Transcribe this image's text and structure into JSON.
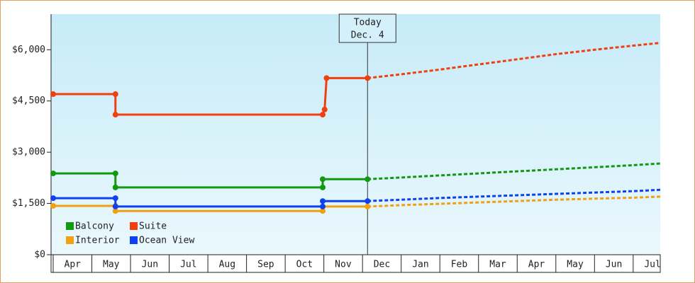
{
  "chart_data": {
    "type": "line",
    "ylim": [
      0,
      7000
    ],
    "yticks": [
      {
        "value": 0,
        "label": "$0"
      },
      {
        "value": 1500,
        "label": "$1,500"
      },
      {
        "value": 3000,
        "label": "$3,000"
      },
      {
        "value": 4500,
        "label": "$4,500"
      },
      {
        "value": 6000,
        "label": "$6,000"
      }
    ],
    "xlim": [
      0,
      15.7
    ],
    "xticks": [
      {
        "value": 0.5,
        "label": "Apr"
      },
      {
        "value": 1.5,
        "label": "May"
      },
      {
        "value": 2.5,
        "label": "Jun"
      },
      {
        "value": 3.5,
        "label": "Jul"
      },
      {
        "value": 4.5,
        "label": "Aug"
      },
      {
        "value": 5.5,
        "label": "Sep"
      },
      {
        "value": 6.5,
        "label": "Oct"
      },
      {
        "value": 7.5,
        "label": "Nov"
      },
      {
        "value": 8.5,
        "label": "Dec"
      },
      {
        "value": 9.5,
        "label": "Jan"
      },
      {
        "value": 10.5,
        "label": "Feb"
      },
      {
        "value": 11.5,
        "label": "Mar"
      },
      {
        "value": 12.5,
        "label": "Apr"
      },
      {
        "value": 13.5,
        "label": "May"
      },
      {
        "value": 14.5,
        "label": "Jun"
      },
      {
        "value": 15.5,
        "label": "Jul"
      }
    ],
    "annotation": {
      "x": 8.13,
      "lines": [
        "Today",
        "Dec. 4"
      ]
    },
    "series": [
      {
        "name": "Balcony",
        "color": "#119911",
        "x": [
          0,
          1.61,
          1.61,
          6.97,
          6.97,
          8.13
        ],
        "values": [
          2380,
          2380,
          1970,
          1970,
          2210,
          2210
        ],
        "projection": {
          "x": [
            8.13,
            9,
            10,
            11,
            12,
            13,
            14,
            15,
            15.7
          ],
          "values": [
            2210,
            2260,
            2320,
            2380,
            2440,
            2500,
            2560,
            2620,
            2670
          ]
        }
      },
      {
        "name": "Suite",
        "color": "#f04010",
        "x": [
          0,
          1.61,
          1.61,
          6.97,
          7.02,
          7.07,
          8.13
        ],
        "values": [
          4700,
          4700,
          4100,
          4100,
          4250,
          5170,
          5170
        ],
        "projection": {
          "x": [
            8.13,
            9,
            10,
            11,
            12,
            13,
            14,
            15,
            15.7
          ],
          "values": [
            5170,
            5280,
            5420,
            5570,
            5720,
            5870,
            6000,
            6120,
            6200
          ]
        }
      },
      {
        "name": "Interior",
        "color": "#f0a010",
        "x": [
          0,
          1.61,
          1.61,
          6.97,
          6.97,
          8.13
        ],
        "values": [
          1430,
          1430,
          1280,
          1280,
          1410,
          1410
        ],
        "projection": {
          "x": [
            8.13,
            9,
            10,
            11,
            12,
            13,
            14,
            15,
            15.7
          ],
          "values": [
            1410,
            1450,
            1490,
            1530,
            1570,
            1610,
            1640,
            1670,
            1700
          ]
        }
      },
      {
        "name": "Ocean View",
        "color": "#1040f0",
        "x": [
          0,
          1.61,
          1.61,
          6.97,
          6.97,
          8.13
        ],
        "values": [
          1655,
          1655,
          1410,
          1410,
          1570,
          1570
        ],
        "projection": {
          "x": [
            8.13,
            9,
            10,
            11,
            12,
            13,
            14,
            15,
            15.7
          ],
          "values": [
            1570,
            1610,
            1660,
            1700,
            1740,
            1780,
            1820,
            1860,
            1900
          ]
        }
      }
    ]
  }
}
